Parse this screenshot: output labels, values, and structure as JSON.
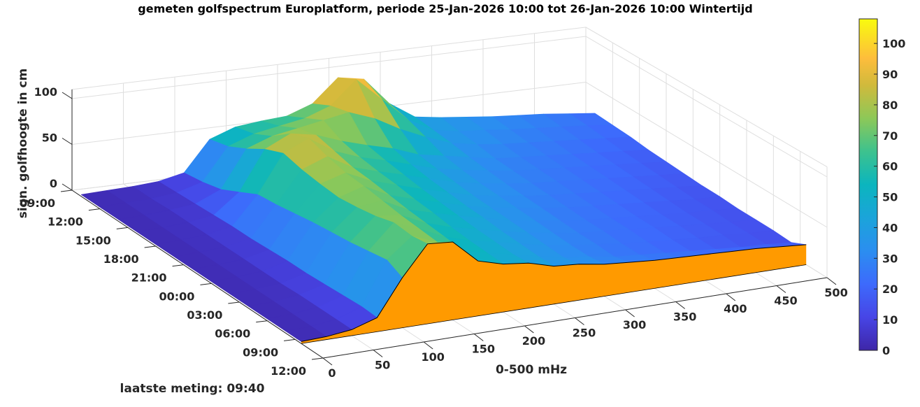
{
  "chart_data": {
    "type": "surface",
    "title": "gemeten golfspectrum Europlatform, periode 25-Jan-2026 10:00 tot 26-Jan-2026 10:00 Wintertijd",
    "xlabel": "0-500 mHz",
    "zlabel": "sign. golfhoogte in cm",
    "footer": "laatste meting: 09:40",
    "freq_mhz": [
      0,
      25,
      50,
      75,
      100,
      125,
      150,
      175,
      200,
      225,
      250,
      275,
      300,
      325,
      350,
      375,
      400,
      425,
      450,
      475,
      500
    ],
    "time_rows": [
      "10:00",
      "12:00",
      "14:00",
      "16:00",
      "18:00",
      "20:00",
      "22:00",
      "00:00",
      "02:00",
      "04:00",
      "06:00",
      "08:00",
      "09:40"
    ],
    "z_values": [
      [
        2,
        3,
        4,
        6,
        12,
        45,
        55,
        58,
        60,
        70,
        95,
        90,
        60,
        42,
        38,
        35,
        32,
        30,
        28,
        25,
        22
      ],
      [
        2,
        3,
        4,
        7,
        15,
        50,
        60,
        65,
        70,
        80,
        105,
        80,
        55,
        40,
        35,
        33,
        30,
        28,
        26,
        24,
        21
      ],
      [
        2,
        3,
        5,
        8,
        20,
        60,
        70,
        75,
        80,
        85,
        75,
        60,
        48,
        38,
        33,
        30,
        28,
        26,
        24,
        22,
        20
      ],
      [
        2,
        3,
        5,
        9,
        30,
        72,
        85,
        80,
        70,
        62,
        55,
        45,
        40,
        35,
        30,
        28,
        26,
        24,
        22,
        20,
        18
      ],
      [
        2,
        3,
        5,
        10,
        40,
        80,
        92,
        75,
        65,
        58,
        50,
        42,
        37,
        33,
        29,
        27,
        25,
        23,
        21,
        19,
        17
      ],
      [
        2,
        3,
        5,
        10,
        42,
        75,
        85,
        70,
        62,
        55,
        47,
        40,
        35,
        31,
        28,
        26,
        24,
        22,
        20,
        18,
        16
      ],
      [
        2,
        3,
        5,
        11,
        45,
        72,
        80,
        68,
        60,
        52,
        45,
        38,
        34,
        30,
        27,
        25,
        23,
        21,
        19,
        17,
        15
      ],
      [
        2,
        3,
        5,
        12,
        48,
        70,
        78,
        65,
        57,
        50,
        43,
        37,
        33,
        29,
        26,
        24,
        22,
        20,
        18,
        16,
        15
      ],
      [
        2,
        3,
        5,
        12,
        50,
        72,
        75,
        62,
        55,
        48,
        42,
        36,
        32,
        28,
        25,
        23,
        21,
        19,
        17,
        16,
        14
      ],
      [
        2,
        3,
        6,
        13,
        52,
        75,
        72,
        60,
        52,
        46,
        40,
        35,
        31,
        27,
        25,
        23,
        21,
        19,
        17,
        15,
        14
      ],
      [
        2,
        3,
        6,
        14,
        55,
        80,
        70,
        58,
        50,
        45,
        39,
        34,
        30,
        27,
        24,
        22,
        20,
        18,
        17,
        15,
        14
      ],
      [
        2,
        3,
        6,
        15,
        58,
        78,
        68,
        56,
        49,
        44,
        38,
        33,
        30,
        26,
        24,
        22,
        20,
        18,
        16,
        15,
        13
      ],
      [
        2,
        3,
        6,
        14,
        50,
        80,
        78,
        55,
        48,
        45,
        38,
        36,
        32,
        30,
        28,
        27,
        26,
        25,
        24,
        22,
        20
      ]
    ],
    "latest_slice_time": "09:40",
    "time_ticks": [
      "09:00",
      "12:00",
      "15:00",
      "18:00",
      "21:00",
      "00:00",
      "03:00",
      "06:00",
      "09:00",
      "12:00"
    ],
    "freq_ticks": [
      "0",
      "50",
      "100",
      "150",
      "200",
      "250",
      "300",
      "350",
      "400",
      "450",
      "500"
    ],
    "z_ticks": [
      "0",
      "50",
      "100"
    ],
    "zlim": [
      0,
      110
    ],
    "clim": [
      0,
      108
    ],
    "colorbar_ticks": [
      "0",
      "10",
      "20",
      "30",
      "40",
      "50",
      "60",
      "70",
      "80",
      "90",
      "100"
    ],
    "colorbar_location": "right",
    "slice_color": "#ff9a00",
    "colormap": "parula"
  }
}
